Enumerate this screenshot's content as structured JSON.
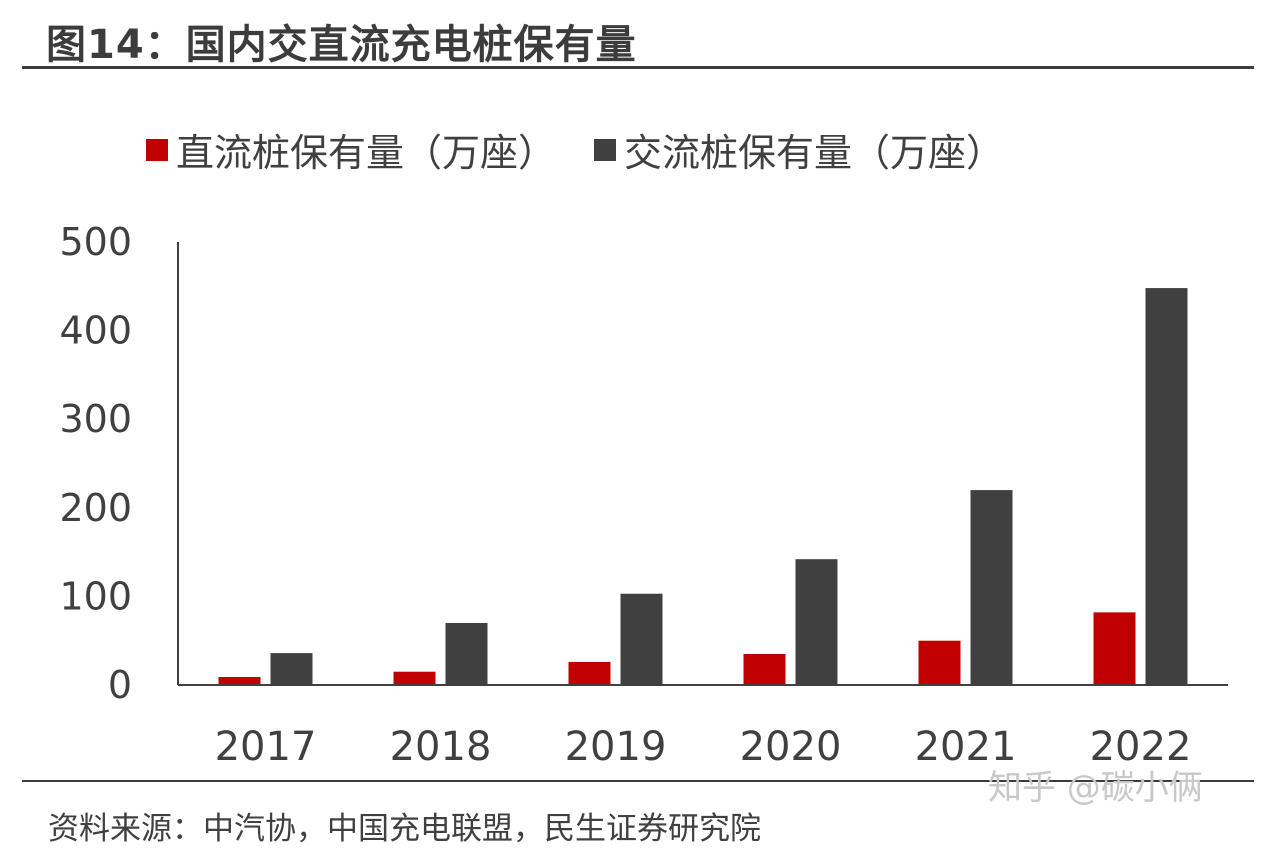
{
  "title": "图14：国内交直流充电桩保有量",
  "source": "资料来源：中汽协，中国充电联盟，民生证券研究院",
  "watermark": "知乎 @碳小俩",
  "colors": {
    "dc": "#c00000",
    "ac": "#404040",
    "axis": "#404040",
    "rule": "#3c3c3c"
  },
  "chart_data": {
    "type": "bar",
    "categories": [
      "2017",
      "2018",
      "2019",
      "2020",
      "2021",
      "2022"
    ],
    "series": [
      {
        "name": "直流桩保有量（万座）",
        "values": [
          9,
          15,
          26,
          35,
          50,
          82
        ]
      },
      {
        "name": "交流桩保有量（万座）",
        "values": [
          36,
          70,
          103,
          142,
          220,
          448
        ]
      }
    ],
    "y_ticks": [
      "0",
      "100",
      "200",
      "300",
      "400",
      "500"
    ],
    "ylim": [
      0,
      500
    ],
    "grid": false,
    "legend_position": "top"
  }
}
